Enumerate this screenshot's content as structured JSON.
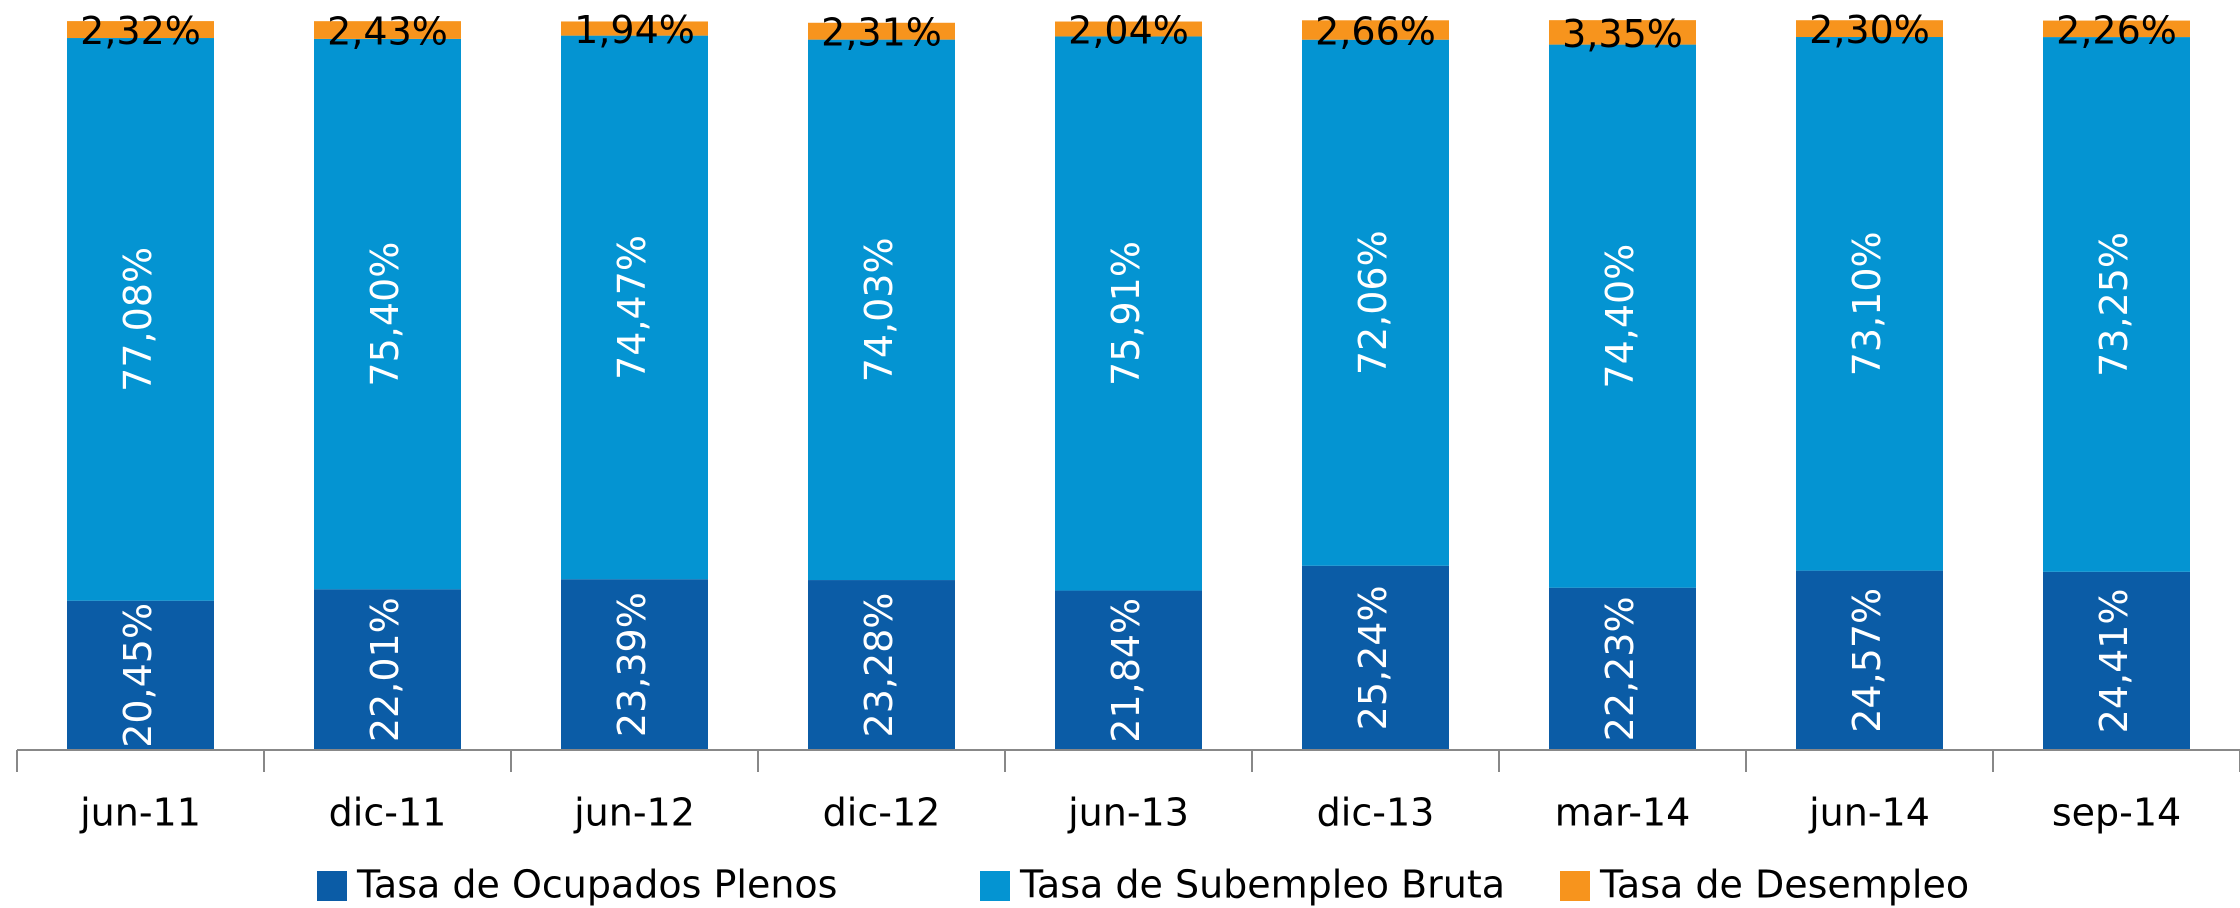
{
  "chart_data": {
    "type": "stacked_bar",
    "categories": [
      "jun-11",
      "dic-11",
      "jun-12",
      "dic-12",
      "jun-13",
      "dic-13",
      "mar-14",
      "jun-14",
      "sep-14"
    ],
    "series": [
      {
        "name": "Tasa de Ocupados Plenos",
        "color": "#0b5ca6",
        "values": [
          20.45,
          22.01,
          23.39,
          23.28,
          21.84,
          25.24,
          22.23,
          24.57,
          24.41
        ],
        "value_labels": [
          "20,45%",
          "22,01%",
          "23,39%",
          "23,28%",
          "21,84%",
          "25,24%",
          "22,23%",
          "24,57%",
          "24,41%"
        ]
      },
      {
        "name": "Tasa de Subempleo Bruta",
        "color": "#0494d2",
        "values": [
          77.08,
          75.4,
          74.47,
          74.03,
          75.91,
          72.06,
          74.4,
          73.1,
          73.25
        ],
        "value_labels": [
          "77,08%",
          "75,40%",
          "74,47%",
          "74,03%",
          "75,91%",
          "72,06%",
          "74,40%",
          "73,10%",
          "73,25%"
        ]
      },
      {
        "name": "Tasa de Desempleo",
        "color": "#f7941d",
        "values": [
          2.32,
          2.43,
          1.94,
          2.31,
          2.04,
          2.66,
          3.35,
          2.3,
          2.26
        ],
        "value_labels": [
          "2,32%",
          "2,43%",
          "1,94%",
          "2,31%",
          "2,04%",
          "2,66%",
          "3,35%",
          "2,30%",
          "2,26%"
        ]
      }
    ],
    "ylim": [
      0,
      100
    ],
    "legend": "bottom"
  }
}
